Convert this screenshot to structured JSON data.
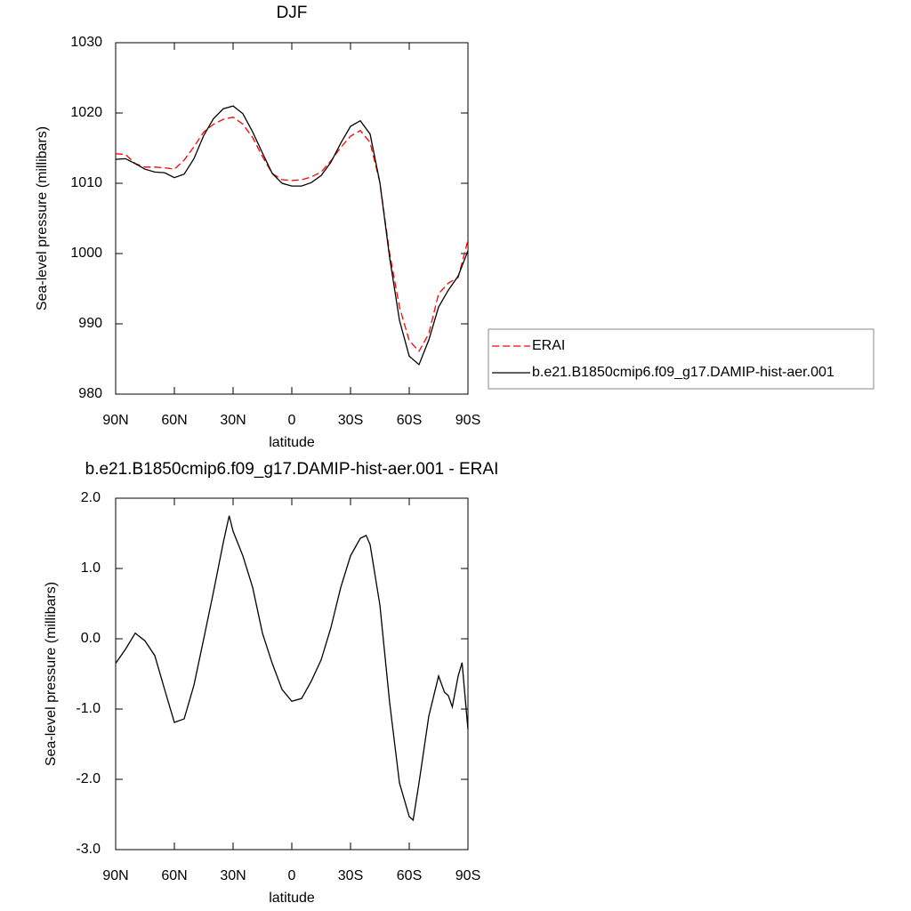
{
  "chart_data": [
    {
      "type": "line",
      "title": "DJF",
      "xlabel": "latitude",
      "ylabel": "Sea-level pressure (millibars)",
      "x": [
        90,
        85,
        80,
        75,
        70,
        65,
        60,
        55,
        50,
        45,
        40,
        35,
        30,
        25,
        20,
        15,
        10,
        5,
        0,
        -5,
        -10,
        -15,
        -20,
        -25,
        -30,
        -35,
        -40,
        -45,
        -50,
        -55,
        -60,
        -65,
        -70,
        -75,
        -80,
        -85,
        -90
      ],
      "series": [
        {
          "name": "ERAI",
          "color": "#ff0000",
          "dashed": true,
          "values": [
            1014.2,
            1014.1,
            1012.8,
            1012.3,
            1012.3,
            1012.2,
            1012.0,
            1013.3,
            1015.2,
            1017.3,
            1018.4,
            1019.1,
            1019.4,
            1018.4,
            1016.5,
            1013.8,
            1011.4,
            1010.5,
            1010.4,
            1010.5,
            1010.9,
            1011.6,
            1013.2,
            1015.1,
            1016.7,
            1017.5,
            1015.8,
            1010.1,
            1000.0,
            992.4,
            987.6,
            986.1,
            988.6,
            994.3,
            995.8,
            996.6,
            1001.9
          ]
        },
        {
          "name": "b.e21.B1850cmip6.f09_g17.DAMIP-hist-aer.001",
          "color": "#000000",
          "dashed": false,
          "values": [
            1013.4,
            1013.5,
            1012.8,
            1012.0,
            1011.6,
            1011.5,
            1010.8,
            1011.3,
            1013.5,
            1016.8,
            1019.2,
            1020.6,
            1021.0,
            1019.9,
            1017.3,
            1014.3,
            1011.4,
            1010.0,
            1009.6,
            1009.6,
            1010.1,
            1011.1,
            1013.0,
            1015.7,
            1018.1,
            1018.9,
            1017.0,
            1010.1,
            999.4,
            990.5,
            985.4,
            984.2,
            987.7,
            992.4,
            994.8,
            996.8,
            1000.4
          ]
        }
      ],
      "xlim": [
        90,
        -90
      ],
      "xticks": [
        {
          "value": 90,
          "label": "90N"
        },
        {
          "value": 60,
          "label": "60N"
        },
        {
          "value": 30,
          "label": "30N"
        },
        0,
        {
          "value": -30,
          "label": "30S"
        },
        {
          "value": -60,
          "label": "60S"
        },
        {
          "value": -90,
          "label": "90S"
        }
      ],
      "ylim": [
        980,
        1030
      ],
      "yticks": [
        980,
        990,
        1000,
        1010,
        1020,
        1030
      ],
      "legend": "right"
    },
    {
      "type": "line",
      "title": "b.e21.B1850cmip6.f09_g17.DAMIP-hist-aer.001 - ERAI",
      "xlabel": "latitude",
      "ylabel": "Sea-level pressure (millibars)",
      "x": [
        90,
        85,
        80,
        75,
        70,
        65,
        60,
        55,
        50,
        45,
        40,
        35,
        32,
        30,
        25,
        20,
        15,
        10,
        5,
        0,
        -5,
        -10,
        -15,
        -20,
        -25,
        -30,
        -35,
        -38,
        -40,
        -45,
        -50,
        -55,
        -60,
        -62,
        -65,
        -70,
        -75,
        -78,
        -80,
        -82,
        -85,
        -87,
        -90
      ],
      "color": "#000000",
      "values": [
        -0.35,
        -0.15,
        0.08,
        -0.03,
        -0.24,
        -0.72,
        -1.19,
        -1.14,
        -0.66,
        0.0,
        0.67,
        1.37,
        1.75,
        1.53,
        1.18,
        0.73,
        0.08,
        -0.35,
        -0.72,
        -0.89,
        -0.85,
        -0.6,
        -0.3,
        0.16,
        0.73,
        1.18,
        1.43,
        1.47,
        1.34,
        0.48,
        -0.91,
        -2.05,
        -2.53,
        -2.58,
        -2.05,
        -1.1,
        -0.53,
        -0.76,
        -0.81,
        -0.97,
        -0.53,
        -0.34,
        -1.29
      ],
      "xlim": [
        90,
        -90
      ],
      "xticks": [
        {
          "value": 90,
          "label": "90N"
        },
        {
          "value": 60,
          "label": "60N"
        },
        {
          "value": 30,
          "label": "30N"
        },
        0,
        {
          "value": -30,
          "label": "30S"
        },
        {
          "value": -60,
          "label": "60S"
        },
        {
          "value": -90,
          "label": "90S"
        }
      ],
      "ylim": [
        -3,
        2
      ],
      "yticks": [
        {
          "value": -3,
          "label": "-3.0"
        },
        {
          "value": -2,
          "label": "-2.0"
        },
        {
          "value": -1,
          "label": "-1.0"
        },
        {
          "value": 0,
          "label": "0.0"
        },
        {
          "value": 1,
          "label": "1.0"
        },
        {
          "value": 2,
          "label": "2.0"
        }
      ]
    }
  ]
}
